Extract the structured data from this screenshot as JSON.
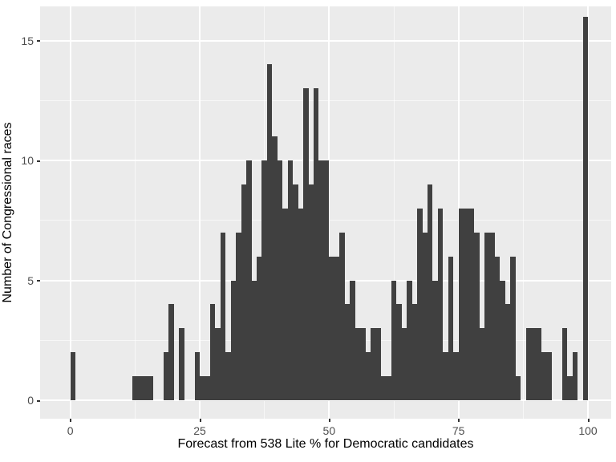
{
  "chart_data": {
    "type": "bar",
    "subtype": "histogram",
    "title": "",
    "xlabel": "Forecast from 538 Lite % for Democratic candidates",
    "ylabel": "Number of Congressional races",
    "x_ticks": [
      "0",
      "25",
      "50",
      "75",
      "100"
    ],
    "x_tick_values": [
      0,
      25,
      50,
      75,
      100
    ],
    "y_ticks": [
      "0",
      "5",
      "10",
      "15"
    ],
    "y_tick_values": [
      0,
      5,
      10,
      15
    ],
    "y_minor_values": [
      2.5,
      7.5,
      12.5
    ],
    "x_minor_values": [
      12.5,
      37.5,
      62.5,
      87.5
    ],
    "xlim": [
      -6,
      106
    ],
    "ylim": [
      0,
      17.2
    ],
    "bin_width": 1,
    "grid": true,
    "legend": "none",
    "bins": [
      {
        "x": 0,
        "n": 2
      },
      {
        "x": 12,
        "n": 1
      },
      {
        "x": 13,
        "n": 1
      },
      {
        "x": 14,
        "n": 1
      },
      {
        "x": 15,
        "n": 1
      },
      {
        "x": 18,
        "n": 2
      },
      {
        "x": 19,
        "n": 4
      },
      {
        "x": 21,
        "n": 3
      },
      {
        "x": 24,
        "n": 2
      },
      {
        "x": 25,
        "n": 1
      },
      {
        "x": 26,
        "n": 1
      },
      {
        "x": 27,
        "n": 4
      },
      {
        "x": 28,
        "n": 3
      },
      {
        "x": 29,
        "n": 7
      },
      {
        "x": 30,
        "n": 2
      },
      {
        "x": 31,
        "n": 5
      },
      {
        "x": 32,
        "n": 7
      },
      {
        "x": 33,
        "n": 9
      },
      {
        "x": 34,
        "n": 10
      },
      {
        "x": 35,
        "n": 5
      },
      {
        "x": 36,
        "n": 6
      },
      {
        "x": 37,
        "n": 10
      },
      {
        "x": 38,
        "n": 14
      },
      {
        "x": 39,
        "n": 11
      },
      {
        "x": 40,
        "n": 10
      },
      {
        "x": 41,
        "n": 8
      },
      {
        "x": 42,
        "n": 10
      },
      {
        "x": 43,
        "n": 9
      },
      {
        "x": 44,
        "n": 8
      },
      {
        "x": 45,
        "n": 13
      },
      {
        "x": 46,
        "n": 9
      },
      {
        "x": 47,
        "n": 13
      },
      {
        "x": 48,
        "n": 10
      },
      {
        "x": 49,
        "n": 10
      },
      {
        "x": 50,
        "n": 6
      },
      {
        "x": 51,
        "n": 6
      },
      {
        "x": 52,
        "n": 7
      },
      {
        "x": 53,
        "n": 4
      },
      {
        "x": 54,
        "n": 5
      },
      {
        "x": 55,
        "n": 3
      },
      {
        "x": 56,
        "n": 3
      },
      {
        "x": 57,
        "n": 2
      },
      {
        "x": 58,
        "n": 3
      },
      {
        "x": 59,
        "n": 3
      },
      {
        "x": 60,
        "n": 1
      },
      {
        "x": 61,
        "n": 1
      },
      {
        "x": 62,
        "n": 5
      },
      {
        "x": 63,
        "n": 4
      },
      {
        "x": 64,
        "n": 3
      },
      {
        "x": 65,
        "n": 5
      },
      {
        "x": 66,
        "n": 4
      },
      {
        "x": 67,
        "n": 8
      },
      {
        "x": 68,
        "n": 7
      },
      {
        "x": 69,
        "n": 9
      },
      {
        "x": 70,
        "n": 5
      },
      {
        "x": 71,
        "n": 8
      },
      {
        "x": 72,
        "n": 2
      },
      {
        "x": 73,
        "n": 6
      },
      {
        "x": 74,
        "n": 2
      },
      {
        "x": 75,
        "n": 8
      },
      {
        "x": 76,
        "n": 8
      },
      {
        "x": 77,
        "n": 8
      },
      {
        "x": 78,
        "n": 7
      },
      {
        "x": 79,
        "n": 3
      },
      {
        "x": 80,
        "n": 7
      },
      {
        "x": 81,
        "n": 7
      },
      {
        "x": 82,
        "n": 6
      },
      {
        "x": 83,
        "n": 5
      },
      {
        "x": 84,
        "n": 4
      },
      {
        "x": 85,
        "n": 6
      },
      {
        "x": 86,
        "n": 1
      },
      {
        "x": 88,
        "n": 3
      },
      {
        "x": 89,
        "n": 3
      },
      {
        "x": 90,
        "n": 3
      },
      {
        "x": 91,
        "n": 2
      },
      {
        "x": 92,
        "n": 2
      },
      {
        "x": 95,
        "n": 3
      },
      {
        "x": 96,
        "n": 1
      },
      {
        "x": 97,
        "n": 2
      },
      {
        "x": 99,
        "n": 16
      }
    ],
    "colors": {
      "bar": "#404040",
      "panel_background": "#EBEBEB",
      "grid_major": "#FFFFFF",
      "grid_minor": "#FFFFFF",
      "tick_text": "#4d4d4d",
      "axis_title_text": "#000000",
      "tick_mark": "#333333"
    }
  }
}
